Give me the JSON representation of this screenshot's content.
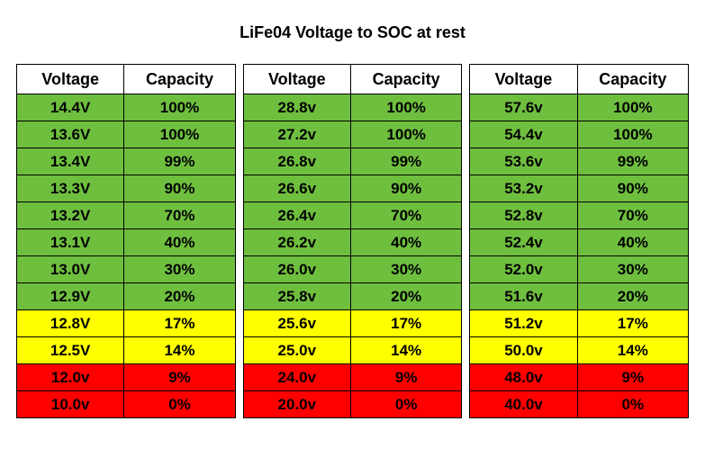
{
  "title": "LiFe04 Voltage to SOC at rest",
  "columns": {
    "voltage": "Voltage",
    "capacity": "Capacity"
  },
  "column_widths": {
    "voltage": 120,
    "capacity": 124
  },
  "colors": {
    "green": "#6fbf3f",
    "yellow": "#ffff00",
    "red": "#ff0000",
    "border": "#000000",
    "header_bg": "#ffffff",
    "text": "#000000",
    "page_bg": "#ffffff"
  },
  "font": {
    "family": "Comic Sans MS",
    "title_size": 18,
    "header_size": 18,
    "cell_size": 17,
    "weight": "bold"
  },
  "tables": [
    {
      "rows": [
        {
          "voltage": "14.4V",
          "capacity": "100%",
          "color": "green"
        },
        {
          "voltage": "13.6V",
          "capacity": "100%",
          "color": "green"
        },
        {
          "voltage": "13.4V",
          "capacity": "99%",
          "color": "green"
        },
        {
          "voltage": "13.3V",
          "capacity": "90%",
          "color": "green"
        },
        {
          "voltage": "13.2V",
          "capacity": "70%",
          "color": "green"
        },
        {
          "voltage": "13.1V",
          "capacity": "40%",
          "color": "green"
        },
        {
          "voltage": "13.0V",
          "capacity": "30%",
          "color": "green"
        },
        {
          "voltage": "12.9V",
          "capacity": "20%",
          "color": "green"
        },
        {
          "voltage": "12.8V",
          "capacity": "17%",
          "color": "yellow"
        },
        {
          "voltage": "12.5V",
          "capacity": "14%",
          "color": "yellow"
        },
        {
          "voltage": "12.0v",
          "capacity": "9%",
          "color": "red"
        },
        {
          "voltage": "10.0v",
          "capacity": "0%",
          "color": "red"
        }
      ]
    },
    {
      "rows": [
        {
          "voltage": "28.8v",
          "capacity": "100%",
          "color": "green"
        },
        {
          "voltage": "27.2v",
          "capacity": "100%",
          "color": "green"
        },
        {
          "voltage": "26.8v",
          "capacity": "99%",
          "color": "green"
        },
        {
          "voltage": "26.6v",
          "capacity": "90%",
          "color": "green"
        },
        {
          "voltage": "26.4v",
          "capacity": "70%",
          "color": "green"
        },
        {
          "voltage": "26.2v",
          "capacity": "40%",
          "color": "green"
        },
        {
          "voltage": "26.0v",
          "capacity": "30%",
          "color": "green"
        },
        {
          "voltage": "25.8v",
          "capacity": "20%",
          "color": "green"
        },
        {
          "voltage": "25.6v",
          "capacity": "17%",
          "color": "yellow"
        },
        {
          "voltage": "25.0v",
          "capacity": "14%",
          "color": "yellow"
        },
        {
          "voltage": "24.0v",
          "capacity": "9%",
          "color": "red"
        },
        {
          "voltage": "20.0v",
          "capacity": "0%",
          "color": "red"
        }
      ]
    },
    {
      "rows": [
        {
          "voltage": "57.6v",
          "capacity": "100%",
          "color": "green"
        },
        {
          "voltage": "54.4v",
          "capacity": "100%",
          "color": "green"
        },
        {
          "voltage": "53.6v",
          "capacity": "99%",
          "color": "green"
        },
        {
          "voltage": "53.2v",
          "capacity": "90%",
          "color": "green"
        },
        {
          "voltage": "52.8v",
          "capacity": "70%",
          "color": "green"
        },
        {
          "voltage": "52.4v",
          "capacity": "40%",
          "color": "green"
        },
        {
          "voltage": "52.0v",
          "capacity": "30%",
          "color": "green"
        },
        {
          "voltage": "51.6v",
          "capacity": "20%",
          "color": "green"
        },
        {
          "voltage": "51.2v",
          "capacity": "17%",
          "color": "yellow"
        },
        {
          "voltage": "50.0v",
          "capacity": "14%",
          "color": "yellow"
        },
        {
          "voltage": "48.0v",
          "capacity": "9%",
          "color": "red"
        },
        {
          "voltage": "40.0v",
          "capacity": "0%",
          "color": "red"
        }
      ]
    }
  ]
}
